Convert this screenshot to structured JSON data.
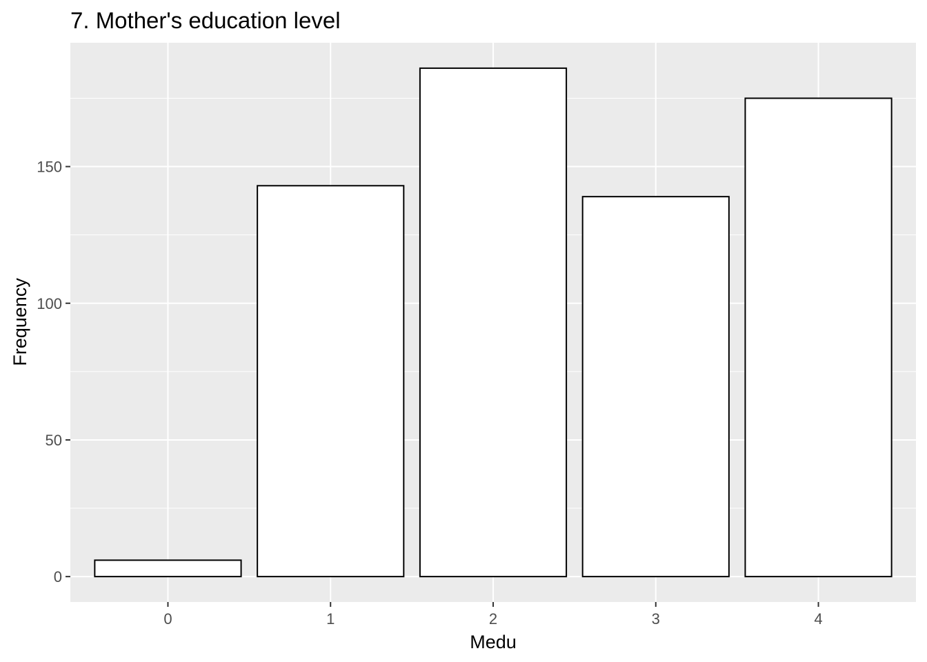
{
  "chart_data": {
    "type": "bar",
    "title": "7. Mother's education level",
    "xlabel": "Medu",
    "ylabel": "Frequency",
    "categories": [
      "0",
      "1",
      "2",
      "3",
      "4"
    ],
    "values": [
      6,
      143,
      186,
      139,
      175
    ],
    "ylim": [
      -9.3,
      195.3
    ],
    "y_ticks": [
      0,
      50,
      100,
      150
    ],
    "y_tick_labels": [
      "0",
      "50",
      "100",
      "150"
    ],
    "grid": true,
    "legend": "none",
    "colors": {
      "panel_background": "#ebebeb",
      "grid_major": "#ffffff",
      "bar_fill": "#ffffff",
      "bar_outline": "#000000",
      "tick_label": "#4d4d4d",
      "tick_mark": "#333333"
    }
  }
}
